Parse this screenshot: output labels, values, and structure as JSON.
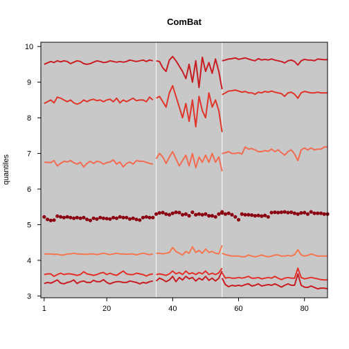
{
  "chart_data": {
    "type": "line",
    "title": "ComBat",
    "xlabel": "",
    "ylabel": "quantiles",
    "xlim": [
      0,
      87
    ],
    "ylim": [
      2.95,
      10.12
    ],
    "xticks": [
      1,
      20,
      40,
      60,
      80
    ],
    "yticks": [
      3,
      4,
      5,
      6,
      7,
      8,
      9,
      10
    ],
    "background": "#c8c8c8",
    "batch_boundaries": [
      35,
      55
    ],
    "batch_line_color": "#ffffff",
    "grid": false,
    "n": 87,
    "series": [
      {
        "color": "#c81c22",
        "style": "line",
        "segments": [
          {
            "start": 1,
            "values": [
              9.5,
              9.54,
              9.58,
              9.55,
              9.6,
              9.57,
              9.6,
              9.58,
              9.52,
              9.56,
              9.6,
              9.58,
              9.52,
              9.5,
              9.52,
              9.56,
              9.6,
              9.58,
              9.55,
              9.56,
              9.6,
              9.58,
              9.56,
              9.58,
              9.56,
              9.58,
              9.62,
              9.6,
              9.58,
              9.6,
              9.62,
              9.58,
              9.62,
              9.6
            ]
          },
          {
            "start": 35,
            "values": [
              9.6,
              9.58,
              9.4,
              9.3,
              9.62,
              9.72,
              9.6,
              9.45,
              9.3,
              9.1,
              9.5,
              9.0,
              9.6,
              8.85,
              9.7,
              9.3,
              9.55,
              9.25,
              9.65,
              9.3,
              8.8
            ]
          },
          {
            "start": 55,
            "values": [
              9.6,
              9.62,
              9.65,
              9.66,
              9.68,
              9.64,
              9.66,
              9.68,
              9.65,
              9.62,
              9.6,
              9.66,
              9.62,
              9.64,
              9.62,
              9.65,
              9.62,
              9.6,
              9.58,
              9.54,
              9.6,
              9.62,
              9.58,
              9.48,
              9.6,
              9.64,
              9.62,
              9.62,
              9.6,
              9.65,
              9.64,
              9.63,
              9.63
            ]
          }
        ]
      },
      {
        "color": "#e0342a",
        "style": "line",
        "segments": [
          {
            "start": 1,
            "values": [
              8.4,
              8.45,
              8.5,
              8.42,
              8.58,
              8.55,
              8.5,
              8.45,
              8.5,
              8.42,
              8.38,
              8.42,
              8.5,
              8.45,
              8.5,
              8.52,
              8.48,
              8.5,
              8.45,
              8.5,
              8.52,
              8.45,
              8.55,
              8.42,
              8.5,
              8.45,
              8.5,
              8.55,
              8.48,
              8.5,
              8.5,
              8.45,
              8.58,
              8.5
            ]
          },
          {
            "start": 35,
            "values": [
              8.55,
              8.6,
              8.45,
              8.3,
              8.7,
              8.9,
              8.6,
              8.3,
              8.0,
              8.4,
              7.9,
              8.5,
              7.75,
              8.6,
              8.2,
              8.0,
              8.7,
              8.3,
              8.5,
              8.2,
              7.6
            ]
          },
          {
            "start": 55,
            "values": [
              8.65,
              8.7,
              8.75,
              8.76,
              8.78,
              8.75,
              8.72,
              8.74,
              8.7,
              8.7,
              8.66,
              8.72,
              8.7,
              8.74,
              8.72,
              8.75,
              8.72,
              8.7,
              8.68,
              8.6,
              8.7,
              8.72,
              8.66,
              8.55,
              8.7,
              8.74,
              8.72,
              8.7,
              8.7,
              8.72,
              8.7,
              8.7,
              8.7
            ]
          }
        ]
      },
      {
        "color": "#f36b51",
        "style": "line",
        "segments": [
          {
            "start": 1,
            "values": [
              6.75,
              6.75,
              6.74,
              6.8,
              6.65,
              6.72,
              6.78,
              6.76,
              6.8,
              6.74,
              6.7,
              6.75,
              6.62,
              6.72,
              6.78,
              6.72,
              6.78,
              6.76,
              6.7,
              6.74,
              6.76,
              6.82,
              6.7,
              6.76,
              6.62,
              6.72,
              6.76,
              6.7,
              6.8,
              6.78,
              6.78,
              6.75,
              6.72,
              6.7
            ]
          },
          {
            "start": 35,
            "values": [
              6.85,
              7.0,
              6.9,
              6.72,
              6.9,
              7.05,
              6.85,
              6.65,
              6.8,
              6.95,
              6.65,
              7.0,
              6.6,
              6.9,
              6.75,
              6.95,
              6.75,
              7.0,
              6.75,
              6.9,
              6.5
            ]
          },
          {
            "start": 55,
            "values": [
              7.0,
              7.02,
              7.05,
              7.0,
              7.0,
              7.02,
              6.98,
              7.18,
              7.12,
              7.14,
              7.1,
              7.05,
              7.05,
              7.08,
              7.06,
              7.12,
              7.05,
              7.1,
              7.02,
              6.95,
              7.05,
              7.1,
              6.98,
              6.8,
              7.1,
              7.15,
              7.1,
              7.15,
              7.1,
              7.12,
              7.12,
              7.18,
              7.18
            ]
          }
        ]
      },
      {
        "color": "#8b0010",
        "style": "points",
        "segments": [
          {
            "start": 1,
            "values": [
              5.22,
              5.15,
              5.12,
              5.13,
              5.24,
              5.22,
              5.2,
              5.22,
              5.2,
              5.18,
              5.2,
              5.18,
              5.2,
              5.15,
              5.12,
              5.18,
              5.16,
              5.2,
              5.18,
              5.17,
              5.16,
              5.2,
              5.18,
              5.22,
              5.2,
              5.2,
              5.16,
              5.18,
              5.15,
              5.13,
              5.2,
              5.22,
              5.2,
              5.2
            ]
          },
          {
            "start": 35,
            "values": [
              5.3,
              5.33,
              5.34,
              5.3,
              5.28,
              5.32,
              5.35,
              5.34,
              5.28,
              5.3,
              5.25,
              5.35,
              5.28,
              5.3,
              5.28,
              5.3,
              5.25,
              5.25,
              5.22,
              5.3,
              5.36
            ]
          },
          {
            "start": 55,
            "values": [
              5.33,
              5.3,
              5.32,
              5.28,
              5.22,
              5.14,
              5.3,
              5.28,
              5.28,
              5.27,
              5.25,
              5.26,
              5.24,
              5.26,
              5.22,
              5.34,
              5.35,
              5.34,
              5.35,
              5.36,
              5.34,
              5.35,
              5.32,
              5.3,
              5.33,
              5.34,
              5.3,
              5.36,
              5.32,
              5.32,
              5.32,
              5.3,
              5.3
            ]
          }
        ]
      },
      {
        "color": "#f6764e",
        "style": "line",
        "segments": [
          {
            "start": 1,
            "values": [
              4.18,
              4.18,
              4.18,
              4.17,
              4.17,
              4.15,
              4.15,
              4.18,
              4.18,
              4.2,
              4.18,
              4.18,
              4.17,
              4.17,
              4.18,
              4.18,
              4.16,
              4.18,
              4.2,
              4.18,
              4.16,
              4.18,
              4.2,
              4.18,
              4.18,
              4.17,
              4.18,
              4.18,
              4.15,
              4.18,
              4.2,
              4.18,
              4.16,
              4.18
            ]
          },
          {
            "start": 35,
            "values": [
              4.2,
              4.2,
              4.18,
              4.2,
              4.22,
              4.36,
              4.25,
              4.2,
              4.15,
              4.25,
              4.2,
              4.38,
              4.22,
              4.28,
              4.2,
              4.32,
              4.22,
              4.25,
              4.2,
              4.18,
              4.42
            ]
          },
          {
            "start": 55,
            "values": [
              4.2,
              4.16,
              4.14,
              4.12,
              4.12,
              4.12,
              4.1,
              4.1,
              4.15,
              4.12,
              4.1,
              4.12,
              4.15,
              4.12,
              4.1,
              4.12,
              4.15,
              4.15,
              4.12,
              4.12,
              4.14,
              4.12,
              4.16,
              4.3,
              4.15,
              4.12,
              4.14,
              4.18,
              4.15,
              4.12,
              4.12,
              4.12,
              4.12
            ]
          }
        ]
      },
      {
        "color": "#e42f28",
        "style": "line",
        "segments": [
          {
            "start": 1,
            "values": [
              3.6,
              3.62,
              3.62,
              3.55,
              3.6,
              3.64,
              3.6,
              3.62,
              3.62,
              3.6,
              3.58,
              3.6,
              3.68,
              3.62,
              3.6,
              3.58,
              3.6,
              3.64,
              3.66,
              3.6,
              3.64,
              3.6,
              3.58,
              3.64,
              3.7,
              3.62,
              3.6,
              3.6,
              3.64,
              3.62,
              3.6,
              3.56,
              3.6,
              3.62
            ]
          },
          {
            "start": 35,
            "values": [
              3.6,
              3.62,
              3.6,
              3.58,
              3.62,
              3.7,
              3.62,
              3.66,
              3.6,
              3.7,
              3.62,
              3.65,
              3.6,
              3.66,
              3.62,
              3.7,
              3.6,
              3.64,
              3.6,
              3.65,
              3.78
            ]
          },
          {
            "start": 55,
            "values": [
              3.65,
              3.5,
              3.52,
              3.5,
              3.5,
              3.52,
              3.5,
              3.52,
              3.55,
              3.5,
              3.5,
              3.52,
              3.48,
              3.5,
              3.52,
              3.5,
              3.55,
              3.5,
              3.46,
              3.5,
              3.52,
              3.5,
              3.5,
              3.78,
              3.52,
              3.48,
              3.5,
              3.52,
              3.5,
              3.48,
              3.46,
              3.45,
              3.45
            ]
          }
        ]
      },
      {
        "color": "#c81c22",
        "style": "line",
        "segments": [
          {
            "start": 1,
            "values": [
              3.35,
              3.38,
              3.36,
              3.4,
              3.45,
              3.36,
              3.34,
              3.38,
              3.4,
              3.45,
              3.35,
              3.4,
              3.42,
              3.38,
              3.38,
              3.44,
              3.4,
              3.4,
              3.46,
              3.38,
              3.34,
              3.38,
              3.4,
              3.4,
              3.38,
              3.38,
              3.42,
              3.4,
              3.38,
              3.34,
              3.38,
              3.36,
              3.4,
              3.42
            ]
          },
          {
            "start": 35,
            "values": [
              3.42,
              3.5,
              3.46,
              3.4,
              3.45,
              3.55,
              3.4,
              3.52,
              3.45,
              3.55,
              3.48,
              3.52,
              3.42,
              3.5,
              3.45,
              3.55,
              3.44,
              3.5,
              3.42,
              3.5,
              3.7
            ]
          },
          {
            "start": 55,
            "values": [
              3.5,
              3.32,
              3.26,
              3.3,
              3.28,
              3.3,
              3.28,
              3.32,
              3.34,
              3.28,
              3.3,
              3.34,
              3.28,
              3.3,
              3.32,
              3.3,
              3.34,
              3.3,
              3.25,
              3.3,
              3.34,
              3.3,
              3.3,
              3.62,
              3.3,
              3.25,
              3.24,
              3.28,
              3.24,
              3.2,
              3.22,
              3.22,
              3.2
            ]
          }
        ]
      }
    ]
  }
}
